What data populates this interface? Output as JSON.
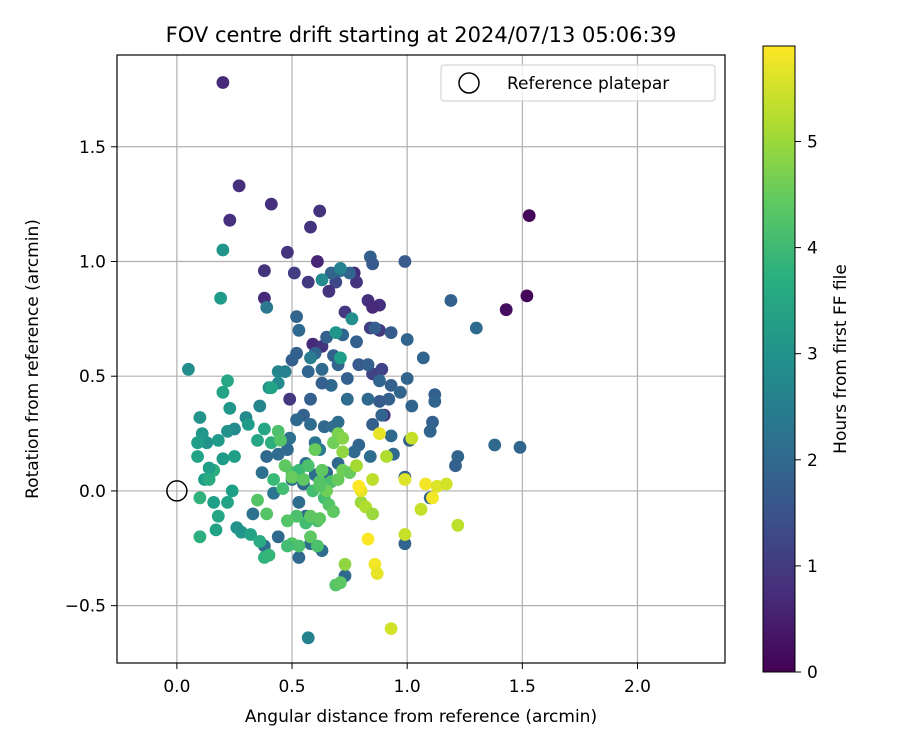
{
  "chart_data": {
    "type": "scatter",
    "title": "FOV centre drift starting at 2024/07/13 05:06:39",
    "xlabel": "Angular distance from reference (arcmin)",
    "ylabel": "Rotation from reference (arcmin)",
    "xlim": [
      -0.26,
      2.38
    ],
    "ylim": [
      -0.75,
      1.9
    ],
    "xticks": [
      0.0,
      0.5,
      1.0,
      1.5,
      2.0
    ],
    "xtick_labels": [
      "0.0",
      "0.5",
      "1.0",
      "1.5",
      "2.0"
    ],
    "yticks": [
      -0.5,
      0.0,
      0.5,
      1.0,
      1.5
    ],
    "ytick_labels": [
      "−0.5",
      "0.0",
      "0.5",
      "1.0",
      "1.5"
    ],
    "grid": true,
    "legend": {
      "position": "top-right",
      "entries": [
        "Reference platepar"
      ]
    },
    "reference_point": {
      "name": "Reference platepar",
      "x": 0.0,
      "y": 0.0
    },
    "colorbar": {
      "label": "Hours from first FF file",
      "colormap": "viridis",
      "range": [
        0,
        5.9
      ],
      "ticks": [
        0,
        1,
        2,
        3,
        4,
        5
      ],
      "tick_labels": [
        "0",
        "1",
        "2",
        "3",
        "4",
        "5"
      ]
    },
    "series": [
      {
        "points": [
          [
            0.2,
            1.78,
            0.7
          ],
          [
            0.27,
            1.33,
            0.8
          ],
          [
            0.41,
            1.25,
            0.8
          ],
          [
            0.23,
            1.18,
            0.8
          ],
          [
            0.62,
            1.22,
            0.9
          ],
          [
            1.53,
            1.2,
            0.1
          ],
          [
            0.58,
            1.15,
            0.9
          ],
          [
            0.48,
            1.04,
            0.9
          ],
          [
            0.61,
            1.0,
            0.6
          ],
          [
            0.38,
            0.96,
            0.9
          ],
          [
            0.51,
            0.95,
            1.1
          ],
          [
            0.57,
            0.91,
            1.0
          ],
          [
            0.69,
            0.91,
            1.3
          ],
          [
            0.77,
            0.95,
            0.7
          ],
          [
            0.78,
            0.91,
            0.9
          ],
          [
            0.66,
            0.87,
            0.9
          ],
          [
            0.38,
            0.84,
            0.7
          ],
          [
            0.83,
            0.83,
            0.8
          ],
          [
            0.88,
            0.81,
            0.8
          ],
          [
            1.43,
            0.79,
            0.2
          ],
          [
            1.52,
            0.85,
            0.1
          ],
          [
            0.85,
            0.8,
            0.7
          ],
          [
            0.73,
            0.78,
            1.0
          ],
          [
            0.84,
            0.71,
            1.1
          ],
          [
            0.88,
            0.7,
            1.0
          ],
          [
            0.59,
            0.64,
            0.7
          ],
          [
            0.63,
            0.63,
            0.9
          ],
          [
            0.85,
            0.51,
            1.2
          ],
          [
            0.89,
            0.53,
            1.2
          ],
          [
            0.9,
            0.33,
            0.8
          ],
          [
            0.49,
            0.4,
            1.0
          ],
          [
            0.99,
            1.0,
            1.7
          ],
          [
            0.84,
            1.02,
            1.8
          ],
          [
            0.85,
            0.99,
            1.7
          ],
          [
            0.75,
            0.95,
            1.9
          ],
          [
            0.71,
            0.96,
            2.0
          ],
          [
            0.67,
            0.95,
            1.9
          ],
          [
            1.19,
            0.83,
            1.8
          ],
          [
            1.3,
            0.71,
            2.0
          ],
          [
            1.0,
            0.66,
            1.9
          ],
          [
            1.07,
            0.58,
            1.9
          ],
          [
            0.93,
            0.69,
            1.7
          ],
          [
            0.86,
            0.71,
            1.8
          ],
          [
            0.78,
            0.65,
            1.8
          ],
          [
            0.7,
            0.55,
            1.9
          ],
          [
            0.63,
            0.53,
            2.0
          ],
          [
            0.57,
            0.52,
            1.9
          ],
          [
            0.52,
            0.6,
            1.8
          ],
          [
            0.5,
            0.57,
            1.8
          ],
          [
            0.53,
            0.7,
            2.0
          ],
          [
            0.52,
            0.76,
            1.9
          ],
          [
            0.6,
            0.6,
            1.9
          ],
          [
            0.65,
            0.67,
            1.8
          ],
          [
            0.68,
            0.59,
            1.8
          ],
          [
            0.72,
            0.68,
            1.9
          ],
          [
            0.74,
            0.49,
            1.8
          ],
          [
            0.79,
            0.55,
            1.7
          ],
          [
            0.83,
            0.55,
            1.8
          ],
          [
            0.88,
            0.48,
            1.9
          ],
          [
            0.93,
            0.46,
            1.8
          ],
          [
            0.97,
            0.43,
            1.9
          ],
          [
            1.0,
            0.49,
            1.9
          ],
          [
            1.12,
            0.42,
            1.8
          ],
          [
            1.12,
            0.39,
            1.9
          ],
          [
            1.02,
            0.37,
            1.9
          ],
          [
            0.92,
            0.4,
            1.8
          ],
          [
            0.88,
            0.39,
            1.7
          ],
          [
            0.83,
            0.4,
            2.0
          ],
          [
            0.74,
            0.4,
            2.1
          ],
          [
            0.67,
            0.46,
            2.0
          ],
          [
            0.63,
            0.47,
            1.8
          ],
          [
            0.58,
            0.4,
            1.8
          ],
          [
            0.55,
            0.33,
            1.8
          ],
          [
            0.52,
            0.31,
            2.0
          ],
          [
            0.58,
            0.29,
            2.1
          ],
          [
            0.64,
            0.28,
            2.0
          ],
          [
            0.7,
            0.3,
            2.1
          ],
          [
            0.79,
            0.2,
            1.9
          ],
          [
            0.85,
            0.29,
            1.8
          ],
          [
            0.89,
            0.33,
            1.9
          ],
          [
            0.93,
            0.24,
            2.0
          ],
          [
            1.01,
            0.22,
            1.8
          ],
          [
            1.11,
            0.3,
            1.8
          ],
          [
            1.1,
            0.26,
            1.9
          ],
          [
            1.22,
            0.15,
            1.9
          ],
          [
            1.21,
            0.11,
            1.8
          ],
          [
            1.38,
            0.2,
            2.0
          ],
          [
            1.49,
            0.19,
            1.9
          ],
          [
            0.99,
            0.06,
            1.8
          ],
          [
            1.1,
            -0.03,
            1.9
          ],
          [
            0.99,
            -0.23,
            1.9
          ],
          [
            0.94,
            0.16,
            2.0
          ],
          [
            0.84,
            0.15,
            2.1
          ],
          [
            0.77,
            0.17,
            2.0
          ],
          [
            0.7,
            0.12,
            2.0
          ],
          [
            0.65,
            0.08,
            2.0
          ],
          [
            0.6,
            0.07,
            2.1
          ],
          [
            0.55,
            0.03,
            2.0
          ],
          [
            0.5,
            0.05,
            2.1
          ],
          [
            0.48,
            0.18,
            2.0
          ],
          [
            0.44,
            0.16,
            2.1
          ],
          [
            0.39,
            0.15,
            2.0
          ],
          [
            0.37,
            0.08,
            2.2
          ],
          [
            0.42,
            -0.01,
            2.3
          ],
          [
            0.49,
            0.23,
            2.2
          ],
          [
            0.53,
            -0.05,
            2.1
          ],
          [
            0.56,
            -0.11,
            2.0
          ],
          [
            0.58,
            -0.23,
            2.1
          ],
          [
            0.53,
            -0.29,
            2.0
          ],
          [
            0.63,
            -0.26,
            2.1
          ],
          [
            0.73,
            -0.37,
            2.0
          ],
          [
            0.44,
            -0.2,
            2.0
          ],
          [
            0.38,
            -0.24,
            2.1
          ],
          [
            0.33,
            -0.1,
            2.2
          ],
          [
            0.56,
            0.12,
            2.2
          ],
          [
            0.68,
            0.28,
            2.1
          ],
          [
            0.6,
            0.21,
            2.3
          ],
          [
            0.62,
            0.18,
            2.4
          ],
          [
            0.57,
            -0.64,
            2.6
          ],
          [
            0.44,
            0.52,
            2.7
          ],
          [
            0.47,
            0.52,
            2.6
          ],
          [
            0.44,
            0.47,
            2.8
          ],
          [
            0.4,
            0.45,
            2.9
          ],
          [
            0.36,
            0.37,
            2.7
          ],
          [
            0.3,
            0.32,
            2.8
          ],
          [
            0.25,
            0.27,
            2.8
          ],
          [
            0.22,
            0.26,
            3.0
          ],
          [
            0.18,
            0.22,
            3.2
          ],
          [
            0.13,
            0.21,
            3.0
          ],
          [
            0.11,
            0.25,
            3.1
          ],
          [
            0.09,
            0.21,
            3.3
          ],
          [
            0.1,
            0.32,
            3.0
          ],
          [
            0.05,
            0.53,
            2.9
          ],
          [
            0.2,
            1.05,
            3.1
          ],
          [
            0.19,
            0.84,
            3.2
          ],
          [
            0.39,
            0.8,
            2.4
          ],
          [
            0.63,
            0.92,
            2.8
          ],
          [
            0.71,
            0.97,
            2.6
          ],
          [
            0.76,
            0.75,
            2.9
          ],
          [
            0.69,
            0.69,
            3.1
          ],
          [
            0.58,
            0.58,
            2.5
          ],
          [
            0.71,
            0.58,
            3.3
          ],
          [
            0.41,
            0.45,
            3.4
          ],
          [
            0.31,
            0.29,
            3.2
          ],
          [
            0.23,
            0.36,
            3.1
          ],
          [
            0.22,
            0.48,
            3.5
          ],
          [
            0.2,
            0.43,
            3.4
          ],
          [
            0.38,
            0.27,
            3.5
          ],
          [
            0.41,
            0.21,
            3.7
          ],
          [
            0.35,
            0.22,
            3.5
          ],
          [
            0.25,
            0.15,
            3.3
          ],
          [
            0.2,
            0.14,
            3.2
          ],
          [
            0.16,
            0.09,
            3.7
          ],
          [
            0.14,
            0.1,
            3.3
          ],
          [
            0.12,
            0.05,
            3.3
          ],
          [
            0.09,
            0.15,
            3.4
          ],
          [
            0.14,
            0.05,
            3.6
          ],
          [
            0.24,
            0.0,
            3.3
          ],
          [
            0.22,
            -0.05,
            3.4
          ],
          [
            0.16,
            -0.05,
            3.3
          ],
          [
            0.17,
            -0.17,
            3.4
          ],
          [
            0.18,
            -0.11,
            3.5
          ],
          [
            0.28,
            -0.18,
            3.1
          ],
          [
            0.26,
            -0.16,
            3.0
          ],
          [
            0.32,
            -0.19,
            3.4
          ],
          [
            0.36,
            -0.22,
            3.6
          ],
          [
            0.38,
            -0.29,
            3.8
          ],
          [
            0.4,
            -0.28,
            3.9
          ],
          [
            0.1,
            -0.03,
            3.8
          ],
          [
            0.1,
            -0.2,
            3.7
          ],
          [
            0.42,
            0.05,
            4.0
          ],
          [
            0.46,
            0.01,
            4.1
          ],
          [
            0.5,
            0.08,
            4.2
          ],
          [
            0.53,
            0.09,
            4.0
          ],
          [
            0.57,
            0.11,
            4.2
          ],
          [
            0.59,
            0.0,
            4.1
          ],
          [
            0.62,
            0.04,
            4.3
          ],
          [
            0.67,
            0.04,
            4.2
          ],
          [
            0.64,
            -0.03,
            4.1
          ],
          [
            0.66,
            -0.06,
            4.3
          ],
          [
            0.68,
            -0.09,
            4.4
          ],
          [
            0.61,
            -0.13,
            4.2
          ],
          [
            0.56,
            -0.14,
            4.1
          ],
          [
            0.52,
            -0.11,
            4.2
          ],
          [
            0.48,
            -0.13,
            4.3
          ],
          [
            0.5,
            -0.23,
            4.3
          ],
          [
            0.53,
            -0.24,
            4.2
          ],
          [
            0.58,
            -0.2,
            4.4
          ],
          [
            0.61,
            -0.24,
            4.2
          ],
          [
            0.69,
            -0.41,
            4.3
          ],
          [
            0.71,
            -0.4,
            4.4
          ],
          [
            0.35,
            -0.04,
            4.3
          ],
          [
            0.39,
            -0.1,
            4.3
          ],
          [
            0.44,
            0.26,
            4.2
          ],
          [
            0.45,
            0.22,
            4.3
          ],
          [
            0.47,
            0.11,
            4.4
          ],
          [
            0.5,
            0.06,
            4.5
          ],
          [
            0.55,
            0.05,
            4.4
          ],
          [
            0.6,
            0.18,
            4.5
          ],
          [
            0.63,
            0.09,
            4.4
          ],
          [
            0.65,
            0.0,
            4.6
          ],
          [
            0.7,
            0.05,
            4.5
          ],
          [
            0.72,
            0.09,
            4.6
          ],
          [
            0.75,
            0.08,
            4.5
          ],
          [
            0.7,
            0.25,
            4.7
          ],
          [
            0.68,
            0.21,
            4.6
          ],
          [
            0.72,
            0.23,
            4.8
          ],
          [
            0.72,
            0.17,
            4.9
          ],
          [
            0.73,
            -0.32,
            4.9
          ],
          [
            0.78,
            0.11,
            5.1
          ],
          [
            0.8,
            -0.05,
            5.0
          ],
          [
            0.82,
            -0.07,
            5.2
          ],
          [
            0.85,
            -0.1,
            5.0
          ],
          [
            0.85,
            0.05,
            5.3
          ],
          [
            0.91,
            0.15,
            5.2
          ],
          [
            0.93,
            -0.6,
            5.5
          ],
          [
            1.02,
            0.23,
            5.4
          ],
          [
            1.06,
            -0.08,
            5.4
          ],
          [
            1.08,
            0.03,
            5.8
          ],
          [
            1.13,
            0.02,
            5.6
          ],
          [
            1.17,
            0.03,
            5.5
          ],
          [
            1.22,
            -0.15,
            5.3
          ],
          [
            0.99,
            -0.19,
            5.4
          ],
          [
            0.99,
            0.05,
            5.6
          ],
          [
            0.8,
            0.0,
            5.7
          ],
          [
            0.79,
            0.02,
            5.9
          ],
          [
            0.86,
            -0.32,
            5.8
          ],
          [
            0.87,
            -0.36,
            5.7
          ],
          [
            0.83,
            -0.21,
            5.9
          ],
          [
            0.88,
            0.25,
            5.7
          ],
          [
            1.11,
            -0.03,
            5.8
          ],
          [
            0.62,
            0.02,
            4.3
          ],
          [
            0.58,
            -0.11,
            4.4
          ],
          [
            0.48,
            -0.24,
            4.1
          ],
          [
            0.62,
            -0.12,
            4.4
          ]
        ]
      }
    ]
  }
}
